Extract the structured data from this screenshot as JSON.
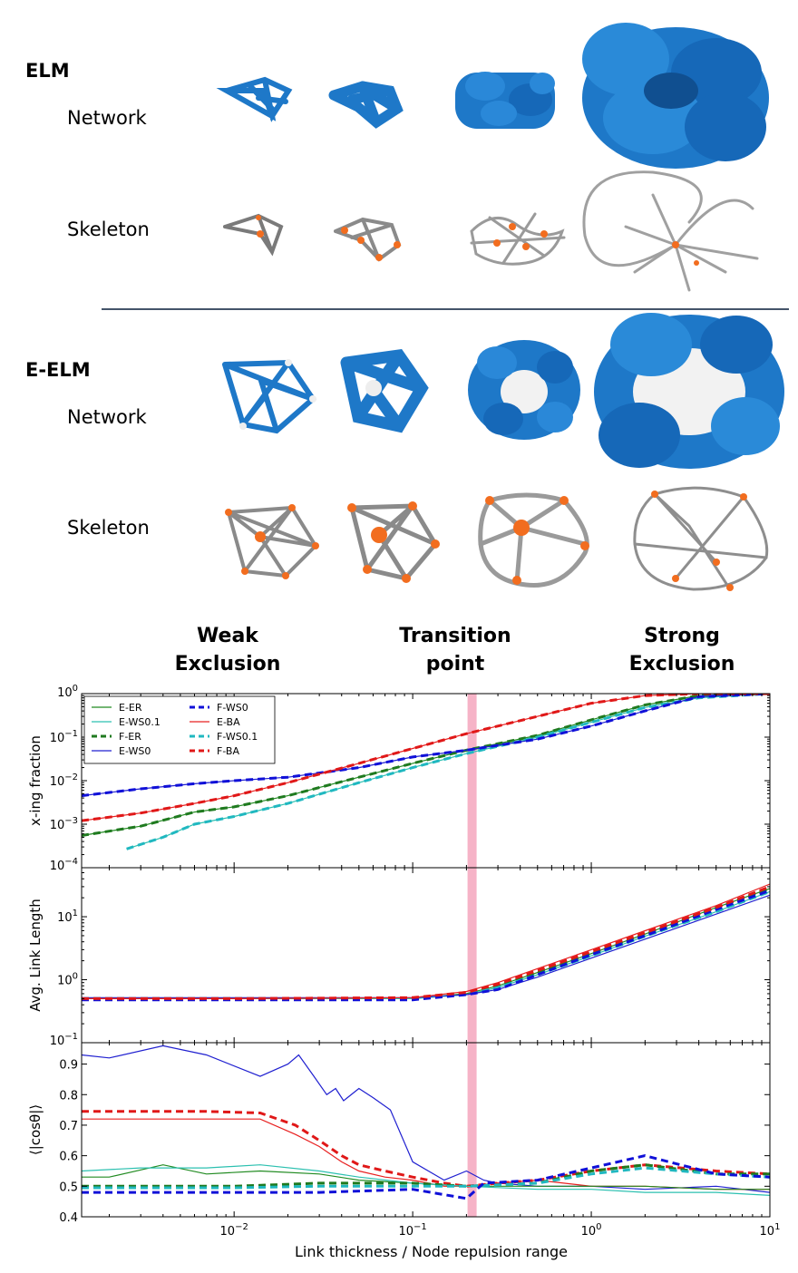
{
  "figure": {
    "sections": [
      {
        "model": "ELM",
        "rows": [
          "Network",
          "Skeleton"
        ]
      },
      {
        "model": "E-ELM",
        "rows": [
          "Network",
          "Skeleton"
        ]
      }
    ],
    "regimes": [
      {
        "line1": "Weak",
        "line2": "Exclusion"
      },
      {
        "line1": "Transition",
        "line2": "point"
      },
      {
        "line1": "Strong",
        "line2": "Exclusion"
      }
    ]
  },
  "colors": {
    "network_blue": "#1e78c8",
    "node_orange": "#f26d1f",
    "skeleton_gray": "#9a9a9a",
    "transition_band": "#f4a6bd",
    "E-ER": "#228b22",
    "E-WS0.1": "#2cc0b0",
    "E-WS0": "#2020d0",
    "E-BA": "#e82020",
    "F-ER": "#1f7a1f",
    "F-WS0.1": "#20b8c0",
    "F-WS0": "#1010d8",
    "F-BA": "#e01818"
  },
  "chart_data": [
    {
      "type": "line",
      "xscale": "log",
      "yscale": "log",
      "xlim": [
        0.0014,
        10
      ],
      "ylim": [
        0.0001,
        1
      ],
      "ylabel": "x-ing fraction",
      "xlabel": "",
      "ytick_labels": [
        "10^0",
        "10^-1",
        "10^-2",
        "10^-3",
        "10^-4"
      ],
      "ytick_values": [
        1,
        0.1,
        0.01,
        0.001,
        0.0001
      ],
      "transition_x": 0.215,
      "legend": {
        "placement": "top-left",
        "entries": [
          "E-ER",
          "E-WS0.1",
          "F-ER",
          "E-WS0",
          "F-WS0",
          "E-BA",
          "F-WS0.1",
          "F-BA"
        ]
      },
      "series": [
        {
          "name": "E-ER",
          "style": "solid",
          "x": [
            0.0014,
            0.003,
            0.006,
            0.01,
            0.02,
            0.05,
            0.1,
            0.2,
            0.5,
            1,
            2,
            4,
            10
          ],
          "y": [
            0.00055,
            0.0009,
            0.0019,
            0.0025,
            0.0045,
            0.012,
            0.025,
            0.05,
            0.11,
            0.25,
            0.55,
            0.9,
            1
          ]
        },
        {
          "name": "F-ER",
          "style": "dashed",
          "x": [
            0.0014,
            0.003,
            0.006,
            0.01,
            0.02,
            0.05,
            0.1,
            0.2,
            0.5,
            1,
            2,
            4,
            10
          ],
          "y": [
            0.00055,
            0.0009,
            0.0019,
            0.0025,
            0.0045,
            0.012,
            0.025,
            0.05,
            0.11,
            0.25,
            0.55,
            0.9,
            1
          ]
        },
        {
          "name": "E-WS0.1",
          "style": "solid",
          "x": [
            0.0025,
            0.004,
            0.006,
            0.01,
            0.02,
            0.05,
            0.1,
            0.2,
            0.5,
            1,
            2,
            4,
            10
          ],
          "y": [
            0.00027,
            0.0005,
            0.001,
            0.0015,
            0.003,
            0.009,
            0.02,
            0.042,
            0.1,
            0.22,
            0.48,
            0.8,
            1
          ]
        },
        {
          "name": "F-WS0.1",
          "style": "dashed",
          "x": [
            0.0025,
            0.004,
            0.006,
            0.01,
            0.02,
            0.05,
            0.1,
            0.2,
            0.5,
            1,
            2,
            4,
            10
          ],
          "y": [
            0.00027,
            0.0005,
            0.001,
            0.0015,
            0.003,
            0.009,
            0.02,
            0.042,
            0.1,
            0.22,
            0.48,
            0.8,
            1
          ]
        },
        {
          "name": "E-WS0",
          "style": "solid",
          "x": [
            0.0014,
            0.003,
            0.006,
            0.01,
            0.02,
            0.05,
            0.1,
            0.2,
            0.5,
            1,
            2,
            4,
            10
          ],
          "y": [
            0.0045,
            0.0065,
            0.0085,
            0.01,
            0.012,
            0.02,
            0.035,
            0.05,
            0.09,
            0.18,
            0.4,
            0.85,
            1
          ]
        },
        {
          "name": "F-WS0",
          "style": "dashed",
          "x": [
            0.0014,
            0.003,
            0.006,
            0.01,
            0.02,
            0.05,
            0.1,
            0.2,
            0.5,
            1,
            2,
            4,
            10
          ],
          "y": [
            0.0045,
            0.0065,
            0.0085,
            0.01,
            0.012,
            0.02,
            0.035,
            0.05,
            0.09,
            0.18,
            0.4,
            0.85,
            1
          ]
        },
        {
          "name": "E-BA",
          "style": "solid",
          "x": [
            0.0014,
            0.003,
            0.006,
            0.01,
            0.02,
            0.05,
            0.1,
            0.2,
            0.5,
            1,
            2,
            4,
            10
          ],
          "y": [
            0.0012,
            0.0018,
            0.003,
            0.0045,
            0.009,
            0.025,
            0.055,
            0.12,
            0.3,
            0.6,
            0.9,
            1,
            1
          ]
        },
        {
          "name": "F-BA",
          "style": "dashed",
          "x": [
            0.0014,
            0.003,
            0.006,
            0.01,
            0.02,
            0.05,
            0.1,
            0.2,
            0.5,
            1,
            2,
            4,
            10
          ],
          "y": [
            0.0012,
            0.0018,
            0.003,
            0.0045,
            0.009,
            0.025,
            0.055,
            0.12,
            0.3,
            0.6,
            0.9,
            1,
            1
          ]
        }
      ]
    },
    {
      "type": "line",
      "xscale": "log",
      "yscale": "log",
      "xlim": [
        0.0014,
        10
      ],
      "ylim": [
        0.1,
        60
      ],
      "ylabel": "Avg. Link Length",
      "xlabel": "",
      "ytick_labels": [
        "10^1",
        "10^0",
        "10^-1"
      ],
      "ytick_values": [
        10,
        1,
        0.1
      ],
      "transition_x": 0.215,
      "series": [
        {
          "name": "E-ER",
          "style": "solid",
          "x": [
            0.0014,
            0.01,
            0.1,
            0.2,
            0.3,
            0.5,
            1,
            2,
            5,
            10
          ],
          "y": [
            0.5,
            0.5,
            0.5,
            0.6,
            0.8,
            1.3,
            2.6,
            5.3,
            14,
            28
          ]
        },
        {
          "name": "F-ER",
          "style": "dashed",
          "x": [
            0.0014,
            0.01,
            0.1,
            0.2,
            0.3,
            0.5,
            1,
            2,
            5,
            10
          ],
          "y": [
            0.5,
            0.5,
            0.5,
            0.6,
            0.8,
            1.3,
            2.6,
            5.3,
            14,
            28
          ]
        },
        {
          "name": "E-WS0.1",
          "style": "solid",
          "x": [
            0.0014,
            0.01,
            0.1,
            0.2,
            0.3,
            0.5,
            1,
            2,
            5,
            10
          ],
          "y": [
            0.5,
            0.5,
            0.5,
            0.58,
            0.75,
            1.2,
            2.4,
            4.9,
            12,
            25
          ]
        },
        {
          "name": "F-WS0.1",
          "style": "dashed",
          "x": [
            0.0014,
            0.01,
            0.1,
            0.2,
            0.3,
            0.5,
            1,
            2,
            5,
            10
          ],
          "y": [
            0.5,
            0.5,
            0.5,
            0.58,
            0.75,
            1.2,
            2.4,
            4.9,
            12,
            25
          ]
        },
        {
          "name": "E-WS0",
          "style": "solid",
          "x": [
            0.0014,
            0.01,
            0.1,
            0.2,
            0.3,
            0.5,
            1,
            2,
            5,
            10
          ],
          "y": [
            0.52,
            0.52,
            0.52,
            0.58,
            0.7,
            1.1,
            2.2,
            4.4,
            11,
            22
          ]
        },
        {
          "name": "F-WS0",
          "style": "dashed",
          "x": [
            0.0014,
            0.01,
            0.1,
            0.2,
            0.3,
            0.5,
            1,
            2,
            5,
            10
          ],
          "y": [
            0.48,
            0.48,
            0.48,
            0.58,
            0.7,
            1.2,
            2.5,
            5.0,
            13,
            26
          ]
        },
        {
          "name": "E-BA",
          "style": "solid",
          "x": [
            0.0014,
            0.01,
            0.1,
            0.2,
            0.3,
            0.5,
            1,
            2,
            5,
            10
          ],
          "y": [
            0.5,
            0.5,
            0.52,
            0.65,
            0.9,
            1.5,
            3.0,
            6.0,
            15,
            33
          ]
        },
        {
          "name": "F-BA",
          "style": "dashed",
          "x": [
            0.0014,
            0.01,
            0.1,
            0.2,
            0.3,
            0.5,
            1,
            2,
            5,
            10
          ],
          "y": [
            0.5,
            0.5,
            0.52,
            0.63,
            0.85,
            1.4,
            2.8,
            5.6,
            14,
            30
          ]
        }
      ]
    },
    {
      "type": "line",
      "xscale": "log",
      "yscale": "linear",
      "xlim": [
        0.0014,
        10
      ],
      "ylim": [
        0.4,
        0.97
      ],
      "ylabel": "⟨|cosθ|⟩",
      "xlabel": "Link thickness / Node repulsion range",
      "ytick_labels": [
        "0.9",
        "0.8",
        "0.7",
        "0.6",
        "0.5",
        "0.4"
      ],
      "ytick_values": [
        0.9,
        0.8,
        0.7,
        0.6,
        0.5,
        0.4
      ],
      "xtick_labels": [
        "10^-2",
        "10^-1",
        "10^0",
        "10^1"
      ],
      "xtick_values": [
        0.01,
        0.1,
        1,
        10
      ],
      "transition_x": 0.215,
      "series": [
        {
          "name": "E-WS0",
          "style": "solid",
          "x": [
            0.0014,
            0.002,
            0.004,
            0.007,
            0.014,
            0.02,
            0.023,
            0.028,
            0.033,
            0.037,
            0.041,
            0.05,
            0.06,
            0.075,
            0.1,
            0.15,
            0.2,
            0.25,
            0.3,
            0.5,
            1,
            2,
            5,
            10
          ],
          "y": [
            0.93,
            0.92,
            0.96,
            0.93,
            0.86,
            0.9,
            0.93,
            0.86,
            0.8,
            0.82,
            0.78,
            0.82,
            0.79,
            0.75,
            0.58,
            0.52,
            0.55,
            0.52,
            0.51,
            0.5,
            0.5,
            0.49,
            0.5,
            0.48
          ]
        },
        {
          "name": "F-BA",
          "style": "dashed",
          "x": [
            0.0014,
            0.007,
            0.014,
            0.022,
            0.03,
            0.04,
            0.05,
            0.07,
            0.1,
            0.15,
            0.2,
            0.3,
            0.5,
            1,
            2,
            5,
            10
          ],
          "y": [
            0.745,
            0.745,
            0.74,
            0.7,
            0.65,
            0.6,
            0.57,
            0.55,
            0.53,
            0.51,
            0.5,
            0.51,
            0.52,
            0.55,
            0.57,
            0.55,
            0.54
          ]
        },
        {
          "name": "E-BA",
          "style": "solid",
          "x": [
            0.0014,
            0.007,
            0.014,
            0.022,
            0.03,
            0.04,
            0.05,
            0.07,
            0.1,
            0.15,
            0.2,
            0.3,
            0.5,
            1,
            2,
            5,
            10
          ],
          "y": [
            0.72,
            0.72,
            0.72,
            0.67,
            0.63,
            0.58,
            0.55,
            0.53,
            0.52,
            0.5,
            0.5,
            0.51,
            0.52,
            0.5,
            0.5,
            0.49,
            0.49
          ]
        },
        {
          "name": "E-ER",
          "style": "solid",
          "x": [
            0.0014,
            0.002,
            0.004,
            0.007,
            0.014,
            0.03,
            0.05,
            0.1,
            0.2,
            0.5,
            1,
            2,
            5,
            10
          ],
          "y": [
            0.53,
            0.53,
            0.57,
            0.54,
            0.55,
            0.54,
            0.52,
            0.51,
            0.5,
            0.5,
            0.5,
            0.5,
            0.49,
            0.49
          ]
        },
        {
          "name": "E-WS0.1",
          "style": "solid",
          "x": [
            0.0014,
            0.003,
            0.007,
            0.014,
            0.03,
            0.05,
            0.1,
            0.2,
            0.5,
            1,
            2,
            5,
            10
          ],
          "y": [
            0.55,
            0.56,
            0.56,
            0.57,
            0.55,
            0.53,
            0.51,
            0.5,
            0.49,
            0.49,
            0.48,
            0.48,
            0.47
          ]
        },
        {
          "name": "F-ER",
          "style": "dashed",
          "x": [
            0.0014,
            0.01,
            0.03,
            0.1,
            0.2,
            0.5,
            1,
            2,
            5,
            10
          ],
          "y": [
            0.5,
            0.5,
            0.51,
            0.51,
            0.5,
            0.51,
            0.55,
            0.57,
            0.54,
            0.54
          ]
        },
        {
          "name": "F-WS0.1",
          "style": "dashed",
          "x": [
            0.0014,
            0.01,
            0.03,
            0.1,
            0.2,
            0.5,
            1,
            2,
            5,
            10
          ],
          "y": [
            0.495,
            0.495,
            0.5,
            0.5,
            0.5,
            0.51,
            0.54,
            0.56,
            0.54,
            0.53
          ]
        },
        {
          "name": "F-WS0",
          "style": "dashed",
          "x": [
            0.0014,
            0.01,
            0.03,
            0.1,
            0.2,
            0.25,
            0.5,
            1,
            2,
            5,
            10
          ],
          "y": [
            0.48,
            0.48,
            0.48,
            0.49,
            0.46,
            0.51,
            0.52,
            0.56,
            0.6,
            0.54,
            0.53
          ]
        }
      ]
    }
  ]
}
